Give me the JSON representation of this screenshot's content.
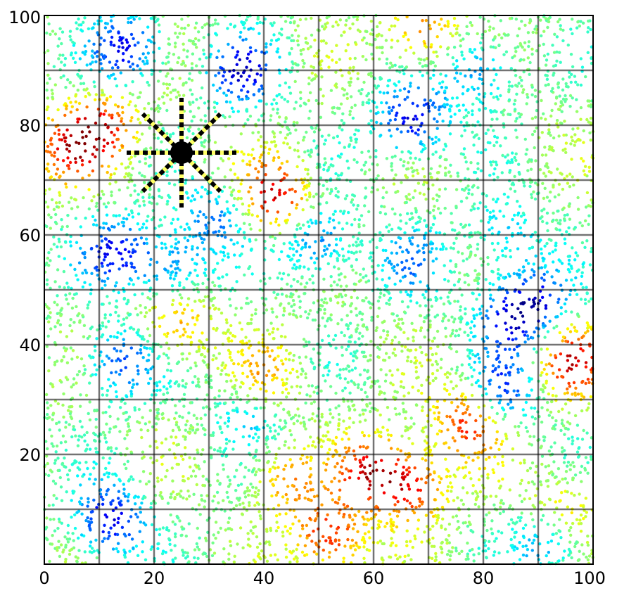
{
  "chart_data": {
    "type": "scatter",
    "title": "",
    "xlabel": "",
    "ylabel": "",
    "xlim": [
      0,
      100
    ],
    "ylim": [
      0,
      100
    ],
    "grid": true,
    "grid_step": 10,
    "x_ticks": [
      "0",
      "20",
      "40",
      "60",
      "80",
      "100"
    ],
    "y_ticks": [
      "20",
      "40",
      "60",
      "80",
      "100"
    ],
    "x_tick_values": [
      0,
      20,
      40,
      60,
      80,
      100
    ],
    "y_tick_values": [
      20,
      40,
      60,
      80,
      100
    ],
    "colormap": "jet",
    "point_count": 7000,
    "random_seed": 12345,
    "clusters": [
      {
        "x": 15,
        "y": 94,
        "v": 0.12
      },
      {
        "x": 36,
        "y": 90,
        "v": 0.12
      },
      {
        "x": 67,
        "y": 81,
        "v": 0.08
      },
      {
        "x": 5,
        "y": 76,
        "v": 0.85
      },
      {
        "x": 11,
        "y": 80,
        "v": 0.8
      },
      {
        "x": 42,
        "y": 67,
        "v": 0.92
      },
      {
        "x": 69,
        "y": 97,
        "v": 0.78
      },
      {
        "x": 13,
        "y": 57,
        "v": 0.15
      },
      {
        "x": 23,
        "y": 54,
        "v": 0.22
      },
      {
        "x": 50,
        "y": 59,
        "v": 0.2
      },
      {
        "x": 85,
        "y": 45,
        "v": 0.18
      },
      {
        "x": 90,
        "y": 48,
        "v": 0.2
      },
      {
        "x": 14,
        "y": 37,
        "v": 0.18
      },
      {
        "x": 96,
        "y": 37,
        "v": 0.88
      },
      {
        "x": 24,
        "y": 44,
        "v": 0.75
      },
      {
        "x": 60,
        "y": 17,
        "v": 0.9
      },
      {
        "x": 67,
        "y": 14,
        "v": 0.85
      },
      {
        "x": 77,
        "y": 26,
        "v": 0.85
      },
      {
        "x": 52,
        "y": 5,
        "v": 0.88
      },
      {
        "x": 12,
        "y": 8,
        "v": 0.08
      },
      {
        "x": 84,
        "y": 32,
        "v": 0.2
      },
      {
        "x": 92,
        "y": 4,
        "v": 0.25
      },
      {
        "x": 79,
        "y": 90,
        "v": 0.25
      },
      {
        "x": 84,
        "y": 60,
        "v": 0.3
      },
      {
        "x": 67,
        "y": 55,
        "v": 0.3
      },
      {
        "x": 95,
        "y": 10,
        "v": 0.7
      },
      {
        "x": 44,
        "y": 15,
        "v": 0.72
      },
      {
        "x": 40,
        "y": 34,
        "v": 0.7
      },
      {
        "x": 31,
        "y": 63,
        "v": 0.25
      },
      {
        "x": 37,
        "y": 28,
        "v": 0.32
      }
    ],
    "background_level": 0.5,
    "marker": {
      "x": 25,
      "y": 75,
      "ray_length": 10,
      "ray_angles_deg": [
        0,
        45,
        90,
        135,
        180,
        225,
        270,
        315
      ],
      "color": "#000000",
      "dash_color": "#ffff66"
    }
  }
}
